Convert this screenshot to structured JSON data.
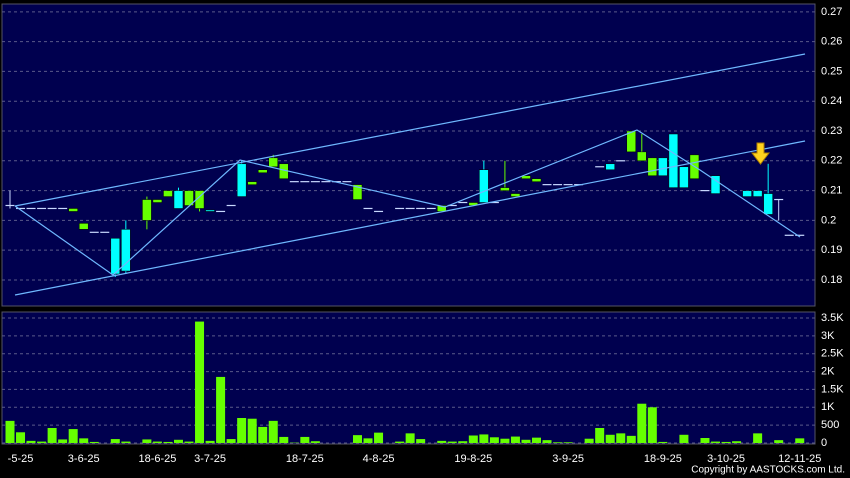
{
  "chart_data": [
    {
      "type": "candlestick",
      "categories": [
        null,
        "-5-25",
        null,
        null,
        null,
        null,
        null,
        "3-6-25",
        null,
        null,
        null,
        null,
        null,
        null,
        "18-6-25",
        null,
        null,
        null,
        null,
        "3-7-25",
        null,
        null,
        null,
        null,
        null,
        null,
        null,
        null,
        "18-7-25",
        null,
        null,
        null,
        null,
        null,
        null,
        "4-8-25",
        null,
        null,
        null,
        null,
        null,
        null,
        null,
        null,
        "19-8-25",
        null,
        null,
        null,
        null,
        null,
        null,
        null,
        null,
        "3-9-25",
        null,
        null,
        null,
        null,
        null,
        null,
        null,
        null,
        "18-9-25",
        null,
        null,
        null,
        null,
        null,
        "3-10-25",
        null,
        null,
        null,
        null,
        null,
        null,
        "12-11-25"
      ],
      "open": [
        0.205,
        0.204,
        0.204,
        0.204,
        0.204,
        0.204,
        0.203,
        0.197,
        0.196,
        0.196,
        0.194,
        0.197,
        null,
        0.2,
        0.206,
        0.208,
        0.21,
        0.205,
        0.204,
        0.2035,
        0.203,
        0.205,
        0.219,
        0.212,
        0.216,
        0.218,
        0.214,
        0.213,
        0.213,
        0.213,
        0.213,
        0.213,
        0.213,
        0.207,
        0.204,
        0.203,
        null,
        0.204,
        0.204,
        0.204,
        0.204,
        0.203,
        0.205,
        0.206,
        0.205,
        0.217,
        0.206,
        0.21,
        0.208,
        0.214,
        0.213,
        0.212,
        0.212,
        0.212,
        0.212,
        null,
        0.218,
        0.219,
        0.22,
        0.223,
        0.22,
        0.215,
        0.221,
        0.229,
        0.218,
        0.214,
        0.21,
        0.215,
        null,
        null,
        0.21,
        0.21,
        0.209,
        0.207,
        0.195,
        0.195
      ],
      "high": [
        0.21,
        0.204,
        0.204,
        0.204,
        0.204,
        0.204,
        0.204,
        0.199,
        0.196,
        0.196,
        0.194,
        0.2,
        null,
        0.208,
        0.207,
        0.21,
        0.211,
        0.21,
        0.21,
        0.2035,
        0.203,
        0.205,
        0.22,
        0.213,
        0.217,
        0.222,
        0.219,
        0.213,
        0.213,
        0.213,
        0.213,
        0.213,
        0.213,
        0.212,
        0.204,
        0.203,
        null,
        0.204,
        0.204,
        0.204,
        0.204,
        0.205,
        0.205,
        0.206,
        0.206,
        0.22,
        0.206,
        0.22,
        0.209,
        0.215,
        0.214,
        0.212,
        0.212,
        0.212,
        0.212,
        null,
        0.218,
        0.219,
        0.22,
        0.23,
        0.229,
        0.221,
        0.221,
        0.229,
        0.218,
        0.222,
        0.21,
        0.215,
        null,
        null,
        0.21,
        0.21,
        0.219,
        0.207,
        0.195,
        0.195
      ],
      "low": [
        0.204,
        0.204,
        0.204,
        0.204,
        0.204,
        0.204,
        0.203,
        0.197,
        0.196,
        0.196,
        0.181,
        0.182,
        null,
        0.197,
        0.206,
        0.208,
        0.204,
        0.205,
        0.203,
        0.203,
        0.203,
        0.205,
        0.208,
        0.212,
        0.216,
        0.218,
        0.214,
        0.213,
        0.213,
        0.213,
        0.213,
        0.213,
        0.213,
        0.207,
        0.204,
        0.203,
        null,
        0.204,
        0.204,
        0.204,
        0.204,
        0.203,
        0.205,
        0.206,
        0.205,
        0.206,
        0.206,
        0.21,
        0.208,
        0.214,
        0.213,
        0.212,
        0.212,
        0.212,
        0.212,
        null,
        0.218,
        0.217,
        0.22,
        0.223,
        0.22,
        0.215,
        0.215,
        0.211,
        0.211,
        0.214,
        0.21,
        0.209,
        null,
        null,
        0.208,
        0.208,
        0.202,
        0.2,
        0.195,
        0.195
      ],
      "close": [
        0.205,
        0.204,
        0.204,
        0.204,
        0.204,
        0.204,
        0.204,
        0.199,
        0.196,
        0.196,
        0.182,
        0.183,
        null,
        0.207,
        0.207,
        0.21,
        0.204,
        0.21,
        0.21,
        0.203,
        0.203,
        0.205,
        0.208,
        0.213,
        0.217,
        0.221,
        0.219,
        0.213,
        0.213,
        0.213,
        0.213,
        0.213,
        0.213,
        0.212,
        0.204,
        0.203,
        null,
        0.204,
        0.204,
        0.204,
        0.204,
        0.205,
        0.205,
        0.206,
        0.206,
        0.206,
        0.206,
        0.211,
        0.209,
        0.215,
        0.214,
        0.212,
        0.212,
        0.212,
        0.212,
        null,
        0.218,
        0.217,
        0.22,
        0.23,
        0.223,
        0.221,
        0.215,
        0.211,
        0.211,
        0.222,
        0.21,
        0.209,
        null,
        null,
        0.208,
        0.208,
        0.202,
        0.207,
        0.195,
        0.195
      ],
      "up_color": "#66ff00",
      "down_color": "#00ffff",
      "flat_color": "#c8d8ff",
      "ylim": [
        0.1716,
        0.2723
      ],
      "yticks": [
        0.18,
        0.19,
        0.2,
        0.21,
        0.22,
        0.23,
        0.24,
        0.25,
        0.26,
        0.27
      ],
      "grid": true
    },
    {
      "type": "bar",
      "color": "#66ff00",
      "values": [
        620,
        300,
        60,
        40,
        420,
        100,
        390,
        130,
        30,
        null,
        110,
        40,
        null,
        100,
        40,
        30,
        90,
        40,
        3400,
        60,
        1850,
        110,
        700,
        680,
        450,
        620,
        170,
        10,
        170,
        50,
        null,
        null,
        null,
        220,
        130,
        290,
        null,
        40,
        270,
        110,
        null,
        60,
        40,
        50,
        210,
        240,
        160,
        120,
        180,
        90,
        150,
        80,
        20,
        20,
        null,
        120,
        420,
        230,
        270,
        200,
        1100,
        1000,
        30,
        null,
        230,
        null,
        140,
        40,
        30,
        50,
        null,
        270,
        null,
        80,
        null,
        130
      ],
      "ylim": [
        0,
        3640
      ],
      "yticks": [
        0,
        500,
        {
          "value": 1000,
          "label": "1K"
        },
        {
          "value": 1500,
          "label": "1.5K"
        },
        {
          "value": 2000,
          "label": "2K"
        },
        {
          "value": 2500,
          "label": "2.5K"
        },
        {
          "value": 3000,
          "label": "3K"
        },
        {
          "value": 3500,
          "label": "3.5K"
        }
      ],
      "grid": true
    }
  ],
  "copyright": "Copyright by AASTOCKS.com Ltd."
}
